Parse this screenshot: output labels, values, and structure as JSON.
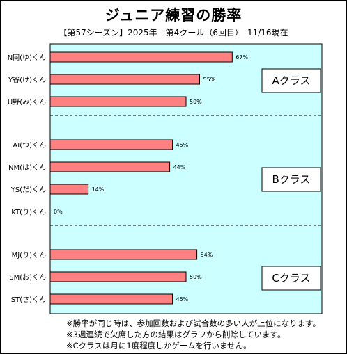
{
  "page": {
    "title": "ジュニア練習の勝率",
    "subtitle": "【第57シーズン】2025年　第4クール（6回目）　11/16現在",
    "notes": [
      "※勝率が同じ時は、参加回数および試合数の多い人が上位になります。",
      "※3週連続で欠席した方の結果はグラフから削除しています。",
      "※Cクラスは月に1度程度しかゲームを行いません。"
    ]
  },
  "colors": {
    "plot_bg": "#ccffff",
    "bar_fill": "#ff8080",
    "bar_stroke": "#000000",
    "divider": "#000000"
  },
  "chart_data": {
    "type": "bar",
    "orientation": "horizontal",
    "title": "ジュニア練習の勝率",
    "xlim": [
      0,
      100
    ],
    "grid": false,
    "value_format": "percent",
    "groups": [
      {
        "name": "Aクラス",
        "categories": [
          "N岡(ゆ)くん",
          "Y谷(け)くん",
          "U野(み)くん"
        ],
        "values": [
          67,
          55,
          50
        ],
        "labels": [
          "67%",
          "55%",
          "50%"
        ]
      },
      {
        "name": "Bクラス",
        "categories": [
          "AI(つ)くん",
          "NM(は)くん",
          "YS(だ)くん",
          "KT(り)くん"
        ],
        "values": [
          45,
          44,
          14,
          0
        ],
        "labels": [
          "45%",
          "44%",
          "14%",
          "0%"
        ]
      },
      {
        "name": "Cクラス",
        "categories": [
          "MJ(り)くん",
          "SM(お)くん",
          "ST(さ)くん"
        ],
        "values": [
          54,
          50,
          45
        ],
        "labels": [
          "54%",
          "50%",
          "45%"
        ]
      }
    ]
  }
}
